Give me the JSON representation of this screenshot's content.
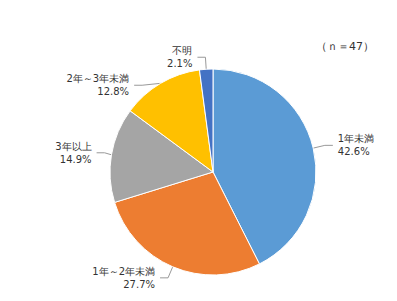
{
  "chart_data": {
    "type": "pie",
    "annotation": "（ｎ＝47）",
    "categories": [
      "1年未満",
      "1年～2年未満",
      "3年以上",
      "2年～3年未満",
      "不明"
    ],
    "values": [
      42.6,
      27.7,
      14.9,
      12.8,
      2.1
    ],
    "value_labels": [
      "42.6%",
      "27.7%",
      "14.9%",
      "12.8%",
      "2.1%"
    ],
    "colors": [
      "#5b9bd5",
      "#ed7d31",
      "#a5a5a5",
      "#ffc000",
      "#4472c4"
    ],
    "data_labels": true
  }
}
